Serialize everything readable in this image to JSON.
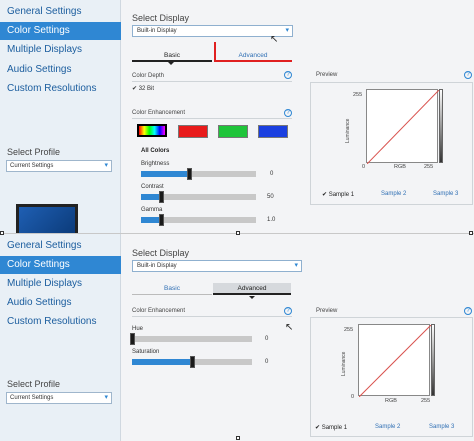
{
  "nav": [
    "General Settings",
    "Color Settings",
    "Multiple Displays",
    "Audio Settings",
    "Custom Resolutions"
  ],
  "profile": {
    "label": "Select Profile",
    "value": "Current Settings"
  },
  "display": {
    "title": "Select Display",
    "value": "Built-in Display"
  },
  "tabs": {
    "basic": "Basic",
    "advanced": "Advanced"
  },
  "panel1": {
    "color_depth": "Color Depth",
    "bit_value": "32 Bit",
    "color_enhancement": "Color Enhancement",
    "all_colors": "All Colors",
    "sliders": [
      {
        "label": "Brightness",
        "value": "0",
        "fill": 0.42
      },
      {
        "label": "Contrast",
        "value": "50",
        "fill": 0.17
      },
      {
        "label": "Gamma",
        "value": "1.0",
        "fill": 0.17
      }
    ]
  },
  "panel2": {
    "color_enhancement": "Color Enhancement",
    "sliders": [
      {
        "label": "Hue",
        "value": "0",
        "fill": 0.0
      },
      {
        "label": "Saturation",
        "value": "0",
        "fill": 0.5
      }
    ]
  },
  "preview": {
    "title": "Preview",
    "y_max": "255",
    "y_min": "0",
    "x_min": "0",
    "x_label": "RGB",
    "x_max": "255",
    "y_label": "Luminance",
    "samples": [
      "Sample 1",
      "Sample 2",
      "Sample 3"
    ]
  },
  "help_glyph": "?",
  "colors": {
    "accent": "#2f87d3",
    "curve": "#d9534f"
  }
}
